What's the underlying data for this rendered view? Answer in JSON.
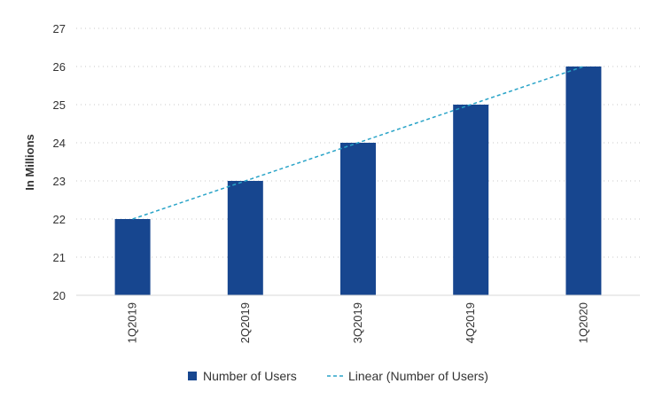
{
  "chart_data": {
    "type": "bar",
    "title": "",
    "xlabel": "",
    "ylabel": "In Millions",
    "categories": [
      "1Q2019",
      "2Q2019",
      "3Q2019",
      "4Q2019",
      "1Q2020"
    ],
    "series": [
      {
        "name": "Number of Users",
        "type": "bar",
        "values": [
          22,
          23,
          24,
          25,
          26
        ],
        "color": "#17468f"
      },
      {
        "name": "Linear (Number of Users)",
        "type": "line",
        "style": "dashed",
        "values": [
          22,
          23,
          24,
          25,
          26
        ],
        "color": "#2aa4c8"
      }
    ],
    "ylim": [
      20,
      27
    ],
    "yticks": [
      20,
      21,
      22,
      23,
      24,
      25,
      26,
      27
    ],
    "grid": true,
    "grid_style": "dotted",
    "legend_position": "bottom-center"
  }
}
